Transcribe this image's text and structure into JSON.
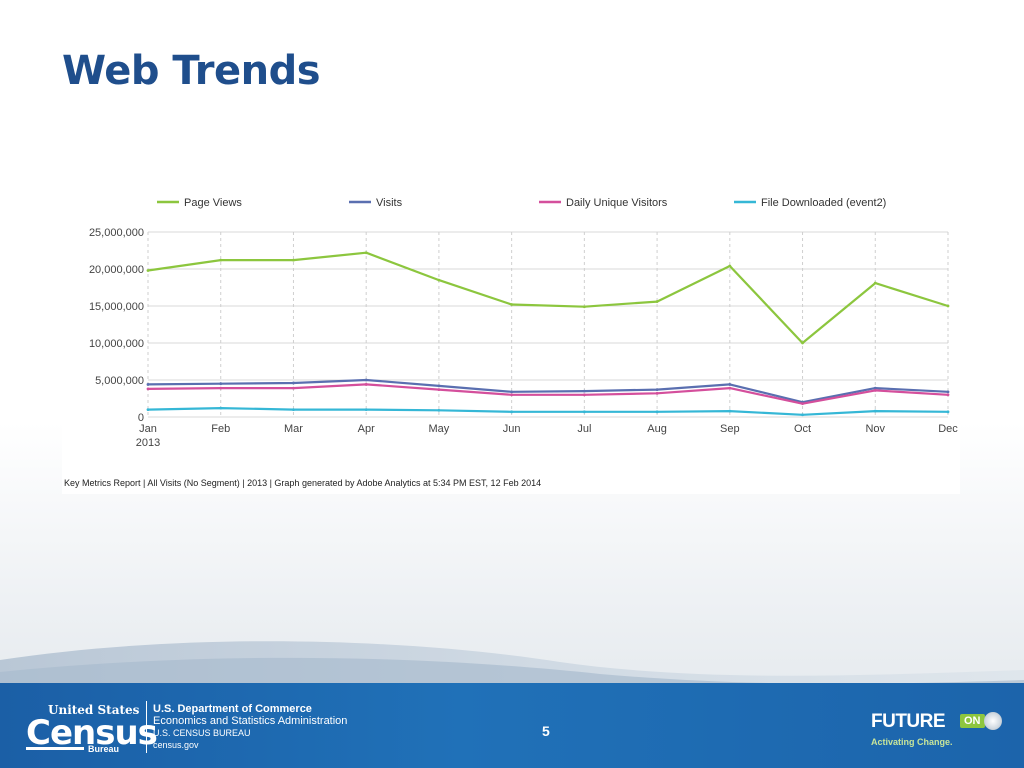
{
  "slide": {
    "title": "Web Trends",
    "page_number": "5"
  },
  "chart_data": {
    "type": "line",
    "categories": [
      "Jan",
      "Feb",
      "Mar",
      "Apr",
      "May",
      "Jun",
      "Jul",
      "Aug",
      "Sep",
      "Oct",
      "Nov",
      "Dec"
    ],
    "year_label": "2013",
    "ylim": [
      0,
      25000000
    ],
    "yticks": [
      "0",
      "5,000,000",
      "10,000,000",
      "15,000,000",
      "20,000,000",
      "25,000,000"
    ],
    "ytick_values": [
      0,
      5000000,
      10000000,
      15000000,
      20000000,
      25000000
    ],
    "grid": "dashed vertical lines at each month",
    "legend_position": "top",
    "series": [
      {
        "name": "Page Views",
        "color": "#8cc63e",
        "values": [
          19800000,
          21200000,
          21200000,
          22200000,
          18500000,
          15200000,
          14900000,
          15600000,
          20400000,
          10000000,
          18100000,
          15000000
        ]
      },
      {
        "name": "Visits",
        "color": "#5a6fb0",
        "values": [
          4400000,
          4500000,
          4600000,
          5000000,
          4200000,
          3400000,
          3500000,
          3700000,
          4400000,
          2000000,
          3900000,
          3400000
        ]
      },
      {
        "name": "Daily Unique Visitors",
        "color": "#d44f9c",
        "values": [
          3800000,
          3900000,
          3900000,
          4400000,
          3700000,
          3000000,
          3000000,
          3200000,
          3900000,
          1800000,
          3600000,
          3000000
        ]
      },
      {
        "name": "File Downloaded (event2)",
        "color": "#35b7d6",
        "values": [
          1000000,
          1200000,
          1000000,
          1000000,
          900000,
          700000,
          700000,
          700000,
          800000,
          300000,
          800000,
          700000
        ]
      }
    ],
    "footnote": "Key Metrics Report | All Visits (No Segment) | 2013 | Graph generated by Adobe Analytics at  5:34 PM EST, 12 Feb 2014"
  },
  "footer": {
    "logo_united_states": "United States",
    "logo_census": "Census",
    "logo_bureau": "Bureau",
    "dept": "U.S. Department of Commerce",
    "admin": "Economics and Statistics Administration",
    "bureau": "U.S. CENSUS BUREAU",
    "site": "census.gov",
    "future_word": "FUTURE",
    "future_on": "ON",
    "future_tagline": "Activating Change."
  }
}
